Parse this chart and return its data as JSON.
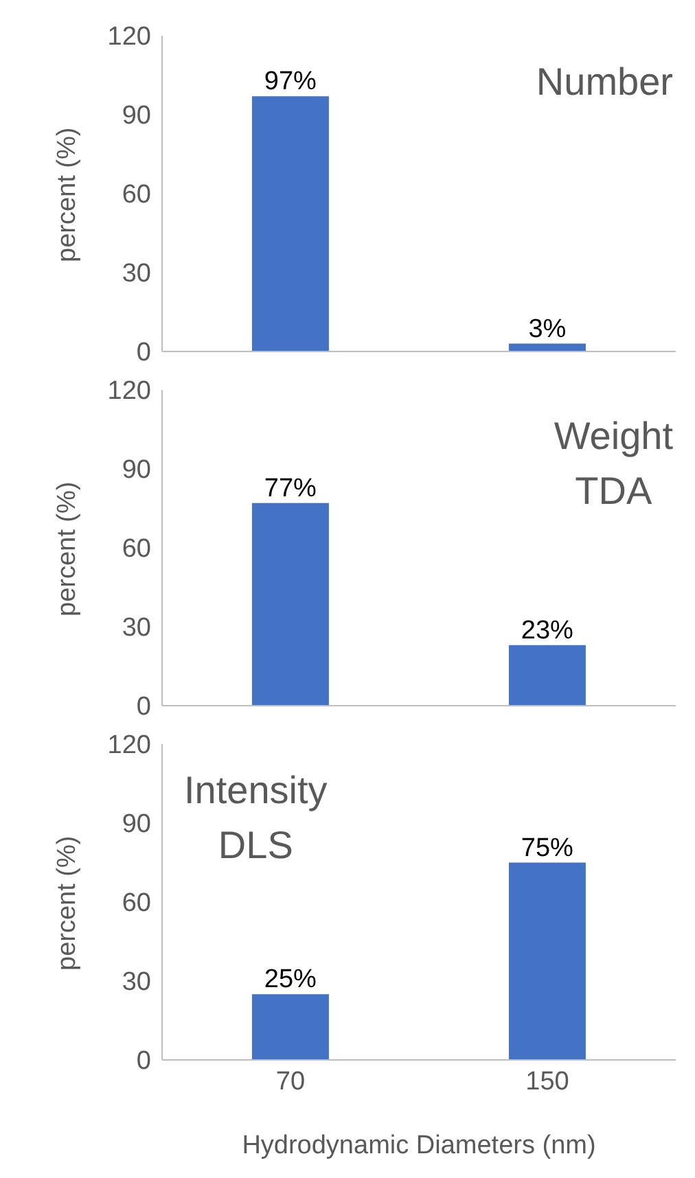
{
  "chart_data": [
    {
      "type": "bar",
      "categories": [
        "70",
        "150"
      ],
      "values": [
        97,
        3
      ],
      "value_labels": [
        "97%",
        "3%"
      ],
      "color": "#4472c4",
      "ylabel": "percent (%)",
      "ylim": [
        0,
        120
      ],
      "yticks": [
        0,
        30,
        60,
        90,
        120
      ],
      "grid": false,
      "tick_labels": "y",
      "annotations": [
        "Number"
      ]
    },
    {
      "type": "bar",
      "categories": [
        "70",
        "150"
      ],
      "values": [
        77,
        23
      ],
      "value_labels": [
        "77%",
        "23%"
      ],
      "color": "#4472c4",
      "ylabel": "percent (%)",
      "ylim": [
        0,
        120
      ],
      "yticks": [
        0,
        30,
        60,
        90,
        120
      ],
      "grid": false,
      "tick_labels": "y",
      "annotations": [
        "Weight TDA"
      ]
    },
    {
      "type": "bar",
      "categories": [
        "70",
        "150"
      ],
      "values": [
        25,
        75
      ],
      "value_labels": [
        "25%",
        "75%"
      ],
      "color": "#4472c4",
      "ylabel": "percent (%)",
      "xlabel": "Hydrodynamic Diameters (nm)",
      "ylim": [
        0,
        120
      ],
      "yticks": [
        0,
        30,
        60,
        90,
        120
      ],
      "grid": false,
      "annotations": [
        "Intensity DLS"
      ]
    }
  ]
}
